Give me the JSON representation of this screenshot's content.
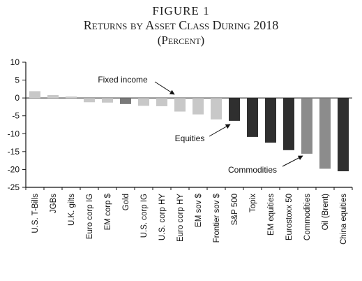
{
  "figure": {
    "label": "FIGURE 1",
    "title": "Returns by Asset Class During 2018",
    "subtitle": "(Percent)"
  },
  "chart_data": {
    "type": "bar",
    "categories": [
      "U.S. T-Bills",
      "JGBs",
      "U.K. gilts",
      "Euro corp IG",
      "EM corp $",
      "Gold",
      "U.S. corp IG",
      "U.S. corp HY",
      "Euro corp HY",
      "EM sov $",
      "Frontier sov $",
      "S&P 500",
      "Topix",
      "EM equities",
      "Eurostoxx 50",
      "Commodities",
      "Oil (Brent)",
      "China equities"
    ],
    "values": [
      1.9,
      0.8,
      0.4,
      -1.2,
      -1.3,
      -1.7,
      -2.2,
      -2.3,
      -3.8,
      -4.6,
      -6.0,
      -6.4,
      -10.9,
      -12.5,
      -14.6,
      -15.6,
      -19.8,
      -20.5
    ],
    "groups": [
      "Fixed income",
      "Fixed income",
      "Fixed income",
      "Fixed income",
      "Fixed income",
      "Gold",
      "Fixed income",
      "Fixed income",
      "Fixed income",
      "Fixed income",
      "Fixed income",
      "Equities",
      "Equities",
      "Equities",
      "Equities",
      "Commodities",
      "Commodities",
      "Equities"
    ],
    "ylim": [
      -25,
      10
    ],
    "yticks": [
      10,
      5,
      0,
      -5,
      -10,
      -15,
      -20,
      -25
    ],
    "xlabel": "",
    "ylabel": "",
    "grid": false,
    "colors": {
      "Fixed income": "#c8c8c8",
      "Gold": "#7a7a7a",
      "Equities": "#2f2f2f",
      "Commodities": "#8c8c8c"
    },
    "annotations": [
      {
        "text": "Fixed income",
        "target": "Gold"
      },
      {
        "text": "Equities",
        "target": "S&P 500"
      },
      {
        "text": "Commodities",
        "target": "Commodities"
      }
    ]
  }
}
